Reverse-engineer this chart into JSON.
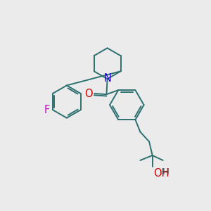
{
  "bg_color": "#ebebeb",
  "bond_color": "#2d7070",
  "bond_width": 1.4,
  "F_color": "#cc00cc",
  "N_color": "#2200cc",
  "O_color": "#cc0000",
  "label_fontsize": 10.5,
  "fig_width": 3.0,
  "fig_height": 3.0,
  "dpi": 100,
  "xlim": [
    0,
    10
  ],
  "ylim": [
    0,
    10
  ]
}
